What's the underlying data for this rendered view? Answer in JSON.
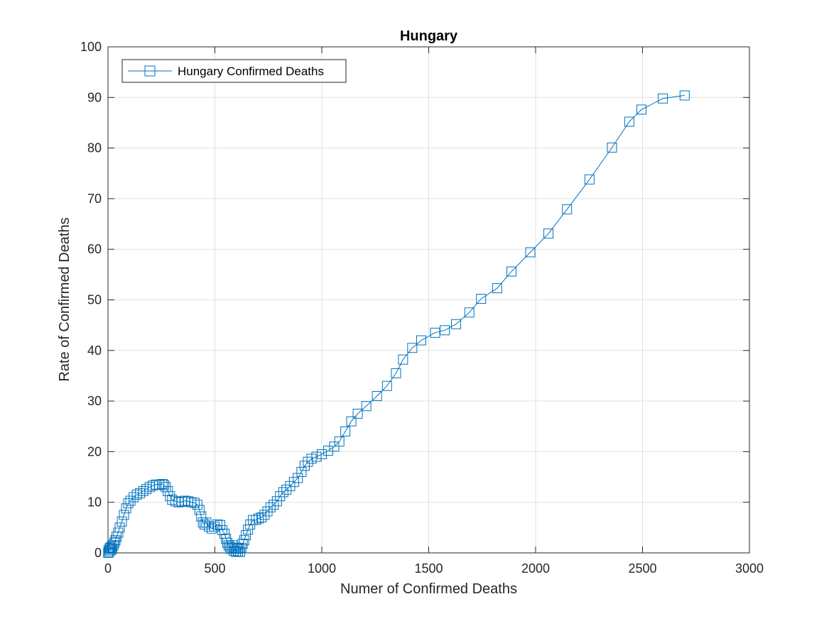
{
  "chart_data": {
    "type": "line",
    "title": "Hungary",
    "xlabel": "Numer of Confirmed Deaths",
    "ylabel": "Rate of Confirmed Deaths",
    "xlim": [
      0,
      3000
    ],
    "ylim": [
      0,
      100
    ],
    "xticks": [
      0,
      500,
      1000,
      1500,
      2000,
      2500,
      3000
    ],
    "yticks": [
      0,
      10,
      20,
      30,
      40,
      50,
      60,
      70,
      80,
      90,
      100
    ],
    "xtick_labels": [
      "0",
      "500",
      "1000",
      "1500",
      "2000",
      "2500",
      "3000"
    ],
    "ytick_labels": [
      "0",
      "10",
      "20",
      "30",
      "40",
      "50",
      "60",
      "70",
      "80",
      "90",
      "100"
    ],
    "grid": true,
    "legend_position": "top-left",
    "marker": "square",
    "color": "#0072BD",
    "series": [
      {
        "name": "Hungary Confirmed Deaths",
        "x": [
          1,
          3,
          5,
          8,
          10,
          13,
          16,
          20,
          25,
          30,
          35,
          40,
          48,
          55,
          65,
          75,
          85,
          95,
          105,
          120,
          135,
          150,
          165,
          180,
          195,
          210,
          225,
          240,
          255,
          262,
          270,
          280,
          290,
          300,
          315,
          330,
          345,
          360,
          375,
          390,
          405,
          418,
          428,
          436,
          444,
          452,
          460,
          472,
          485,
          498,
          512,
          525,
          535,
          545,
          552,
          558,
          564,
          570,
          576,
          582,
          588,
          593,
          598,
          603,
          608,
          613,
          618,
          624,
          630,
          637,
          645,
          655,
          665,
          678,
          692,
          705,
          718,
          732,
          746,
          760,
          775,
          790,
          805,
          820,
          835,
          852,
          870,
          888,
          905,
          920,
          935,
          952,
          975,
          1000,
          1030,
          1058,
          1082,
          1110,
          1138,
          1168,
          1208,
          1258,
          1305,
          1347,
          1380,
          1423,
          1465,
          1530,
          1575,
          1628,
          1690,
          1745,
          1820,
          1887,
          1975,
          2060,
          2147,
          2252,
          2357,
          2438,
          2495,
          2595,
          2697
        ],
        "y": [
          0,
          0.5,
          0.2,
          0.8,
          1,
          0.5,
          1.2,
          0.8,
          1.5,
          2,
          2.5,
          3.2,
          4,
          5,
          6.2,
          7.5,
          8.8,
          9.8,
          10.3,
          11,
          11.5,
          11.8,
          12.2,
          12.6,
          13,
          13.3,
          13.5,
          13.5,
          13.6,
          13.4,
          13,
          12.2,
          11.2,
          10.5,
          10.2,
          10,
          10.1,
          10.3,
          10.2,
          10,
          9.9,
          9.5,
          8.5,
          7.2,
          6,
          5.6,
          6,
          5.2,
          4.8,
          5.2,
          5.6,
          5.5,
          4.5,
          3.8,
          2.8,
          2,
          1.5,
          1.2,
          0.8,
          1.5,
          0.4,
          1,
          0.2,
          0.8,
          0.3,
          0.9,
          0.2,
          1,
          1.8,
          2.5,
          3.5,
          4.6,
          5.6,
          6.5,
          6.5,
          6.8,
          7,
          7.5,
          8.2,
          9,
          9.5,
          10.2,
          11.2,
          12,
          12.5,
          13.2,
          14,
          14.8,
          16,
          17.2,
          18,
          18.6,
          19,
          19.5,
          20.2,
          21,
          22,
          24,
          26,
          27.5,
          29,
          31,
          33,
          35.5,
          38.2,
          40.5,
          42,
          43.5,
          44,
          45.2,
          47.5,
          50.2,
          52.3,
          55.6,
          59.4,
          63.1,
          67.9,
          73.8,
          80.1,
          85.2,
          87.6,
          89.8,
          90.4
        ]
      }
    ]
  }
}
